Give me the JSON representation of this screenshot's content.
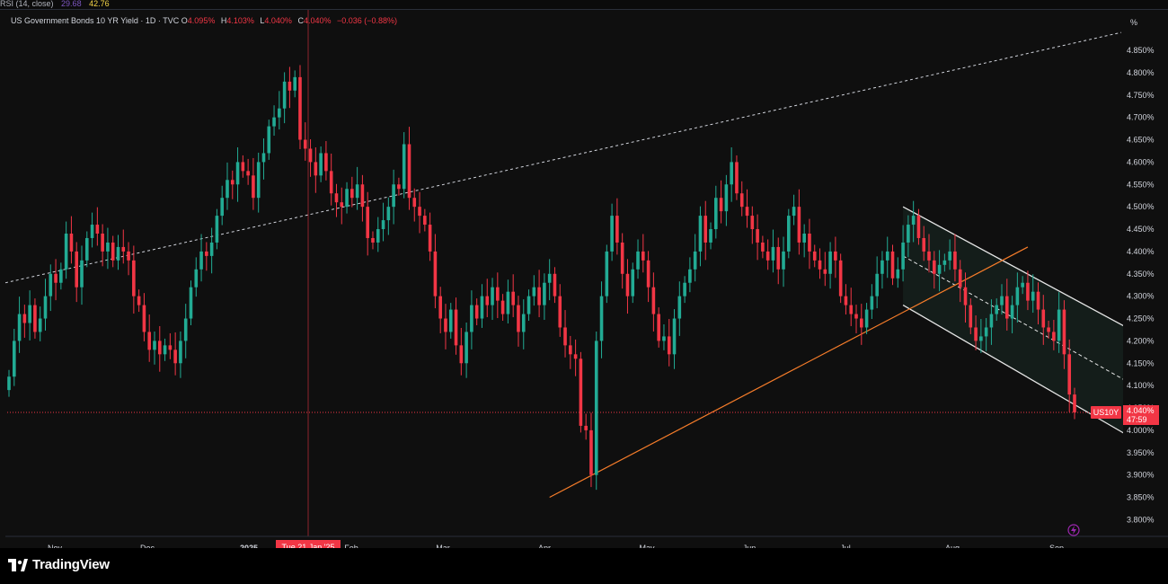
{
  "rsi": {
    "label": "RSI (14, close)",
    "value1": "29.68",
    "value2": "42.76"
  },
  "legend": {
    "symbol": "US Government Bonds 10 YR Yield · 1D · TVC",
    "open_label": "O",
    "open": "4.095%",
    "high_label": "H",
    "high": "4.103%",
    "low_label": "L",
    "low": "4.040%",
    "close_label": "C",
    "close": "4.040%",
    "change": "−0.036 (−0.88%)"
  },
  "brand": {
    "name": "TradingView"
  },
  "colors": {
    "up": "#22ab94",
    "down": "#f23645",
    "background": "#0f0f0f",
    "channel_fill": "#1a2a24",
    "trendline": "#f57c2a",
    "dashed": "#d1d4dc"
  },
  "chart_data": {
    "type": "candlestick",
    "title": "US Government Bonds 10 YR Yield · 1D · TVC",
    "y_unit": "%",
    "ylim": [
      3.76,
      4.87
    ],
    "y_ticks": [
      "4.850%",
      "4.800%",
      "4.750%",
      "4.700%",
      "4.650%",
      "4.600%",
      "4.550%",
      "4.500%",
      "4.450%",
      "4.400%",
      "4.350%",
      "4.300%",
      "4.250%",
      "4.200%",
      "4.150%",
      "4.100%",
      "4.050%",
      "4.000%",
      "3.950%",
      "3.900%",
      "3.850%",
      "3.800%"
    ],
    "x_ticks": [
      "Nov",
      "Dec",
      "2025",
      "Feb",
      "Mar",
      "Apr",
      "May",
      "Jun",
      "Jul",
      "Aug",
      "Sep"
    ],
    "crosshair_label": "Tue 21 Jan '25",
    "last_price": {
      "symbol": "US10Y",
      "value": "4.040%",
      "countdown": "47:59"
    },
    "grid": false,
    "annotations": [
      "long-term dashed uptrend line",
      "orange support trendline from April low",
      "descending white regression channel Jul–Sep"
    ],
    "daily_closes": [
      4.12,
      4.2,
      4.26,
      4.24,
      4.28,
      4.22,
      4.25,
      4.3,
      4.35,
      4.33,
      4.36,
      4.44,
      4.4,
      4.32,
      4.38,
      4.43,
      4.46,
      4.44,
      4.4,
      4.42,
      4.38,
      4.41,
      4.4,
      4.38,
      4.3,
      4.28,
      4.22,
      4.18,
      4.2,
      4.17,
      4.19,
      4.18,
      4.15,
      4.2,
      4.25,
      4.32,
      4.36,
      4.4,
      4.39,
      4.42,
      4.48,
      4.52,
      4.56,
      4.55,
      4.6,
      4.58,
      4.57,
      4.52,
      4.6,
      4.62,
      4.68,
      4.7,
      4.72,
      4.78,
      4.76,
      4.79,
      4.65,
      4.63,
      4.6,
      4.57,
      4.62,
      4.58,
      4.53,
      4.51,
      4.5,
      4.54,
      4.52,
      4.55,
      4.5,
      4.43,
      4.42,
      4.45,
      4.47,
      4.5,
      4.55,
      4.54,
      4.64,
      4.52,
      4.5,
      4.48,
      4.46,
      4.4,
      4.3,
      4.25,
      4.22,
      4.27,
      4.19,
      4.15,
      4.22,
      4.28,
      4.25,
      4.3,
      4.28,
      4.32,
      4.29,
      4.26,
      4.31,
      4.28,
      4.22,
      4.26,
      4.3,
      4.32,
      4.28,
      4.33,
      4.35,
      4.3,
      4.23,
      4.19,
      4.17,
      4.16,
      4.01,
      4.0,
      3.9,
      4.2,
      4.3,
      4.4,
      4.48,
      4.42,
      4.35,
      4.3,
      4.36,
      4.4,
      4.38,
      4.32,
      4.26,
      4.2,
      4.21,
      4.17,
      4.25,
      4.3,
      4.33,
      4.36,
      4.4,
      4.48,
      4.42,
      4.45,
      4.52,
      4.49,
      4.55,
      4.6,
      4.53,
      4.5,
      4.48,
      4.45,
      4.42,
      4.4,
      4.38,
      4.41,
      4.36,
      4.4,
      4.48,
      4.5,
      4.42,
      4.44,
      4.4,
      4.38,
      4.36,
      4.35,
      4.4,
      4.38,
      4.3,
      4.28,
      4.26,
      4.25,
      4.23,
      4.27,
      4.3,
      4.35,
      4.38,
      4.4,
      4.34,
      4.36,
      4.42,
      4.46,
      4.48,
      4.43,
      4.4,
      4.38,
      4.35,
      4.37,
      4.38,
      4.4,
      4.36,
      4.32,
      4.28,
      4.23,
      4.2,
      4.21,
      4.23,
      4.26,
      4.28,
      4.3,
      4.25,
      4.28,
      4.32,
      4.33,
      4.29,
      4.31,
      4.27,
      4.23,
      4.22,
      4.2,
      4.27,
      4.17,
      4.08,
      4.04
    ]
  }
}
